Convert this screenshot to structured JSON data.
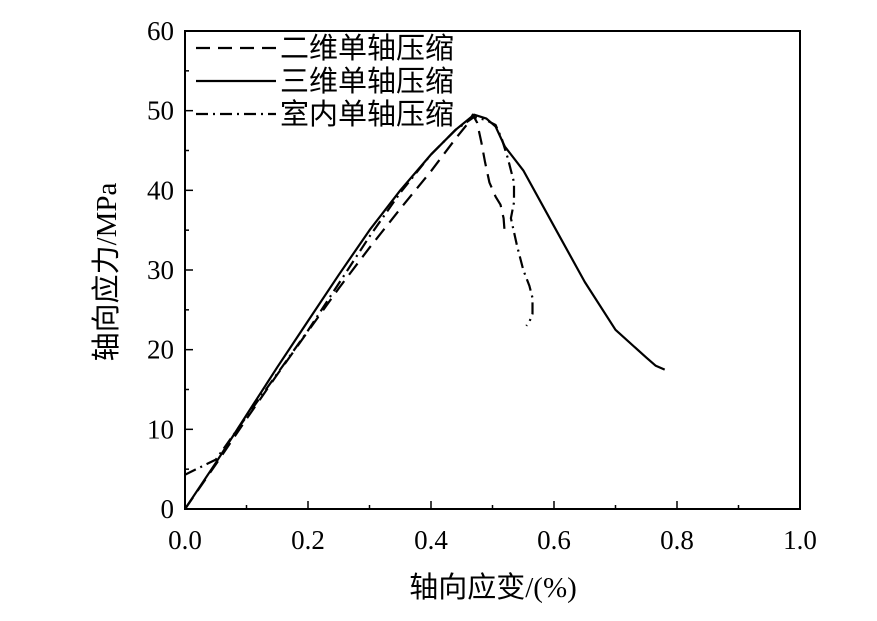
{
  "chart_data": {
    "type": "line",
    "title": "",
    "xlabel": "轴向应变/(%)",
    "ylabel": "轴向应力/MPa",
    "xlim": [
      0.0,
      1.0
    ],
    "ylim": [
      0,
      60
    ],
    "xticks": [
      "0.0",
      "0.2",
      "0.4",
      "0.6",
      "0.8",
      "1.0"
    ],
    "yticks": [
      "0",
      "10",
      "20",
      "30",
      "40",
      "50",
      "60"
    ],
    "grid": false,
    "legend_position": "top-left",
    "series": [
      {
        "name": "二维单轴压缩",
        "style": "dashed",
        "color": "#000000",
        "x": [
          0.0,
          0.05,
          0.1,
          0.15,
          0.2,
          0.25,
          0.3,
          0.35,
          0.4,
          0.44,
          0.46,
          0.468,
          0.475,
          0.482,
          0.488,
          0.495,
          0.505,
          0.513,
          0.518,
          0.52
        ],
        "y": [
          0.0,
          5.6,
          11.3,
          16.9,
          22.3,
          27.7,
          32.8,
          37.7,
          42.4,
          46.5,
          48.4,
          49.5,
          48.5,
          46.0,
          43.5,
          41.0,
          39.2,
          38.2,
          36.5,
          34.5
        ]
      },
      {
        "name": "三维单轴压缩",
        "style": "solid",
        "color": "#000000",
        "x": [
          0.0,
          0.05,
          0.1,
          0.15,
          0.2,
          0.25,
          0.3,
          0.35,
          0.4,
          0.44,
          0.47,
          0.49,
          0.505,
          0.52,
          0.55,
          0.6,
          0.65,
          0.7,
          0.75,
          0.765,
          0.78
        ],
        "y": [
          0.0,
          5.8,
          11.8,
          17.8,
          23.6,
          29.4,
          35.0,
          40.0,
          44.5,
          47.6,
          49.5,
          49.0,
          48.0,
          45.5,
          42.5,
          35.5,
          28.5,
          22.5,
          19.0,
          18.0,
          17.5
        ]
      },
      {
        "name": "室内单轴压缩",
        "style": "dashdot",
        "color": "#000000",
        "x": [
          0.0,
          0.05,
          0.1,
          0.15,
          0.2,
          0.25,
          0.3,
          0.35,
          0.4,
          0.44,
          0.47,
          0.49,
          0.505,
          0.515,
          0.525,
          0.535,
          0.535,
          0.53,
          0.54,
          0.55,
          0.56,
          0.565,
          0.565,
          0.56,
          0.555
        ],
        "y": [
          4.3,
          6.2,
          11.6,
          17.0,
          22.4,
          28.3,
          34.2,
          39.7,
          44.5,
          47.6,
          49.2,
          48.8,
          48.2,
          46.5,
          44.0,
          41.0,
          38.5,
          36.5,
          33.0,
          30.0,
          28.0,
          26.5,
          24.5,
          23.5,
          23.0
        ]
      }
    ]
  }
}
